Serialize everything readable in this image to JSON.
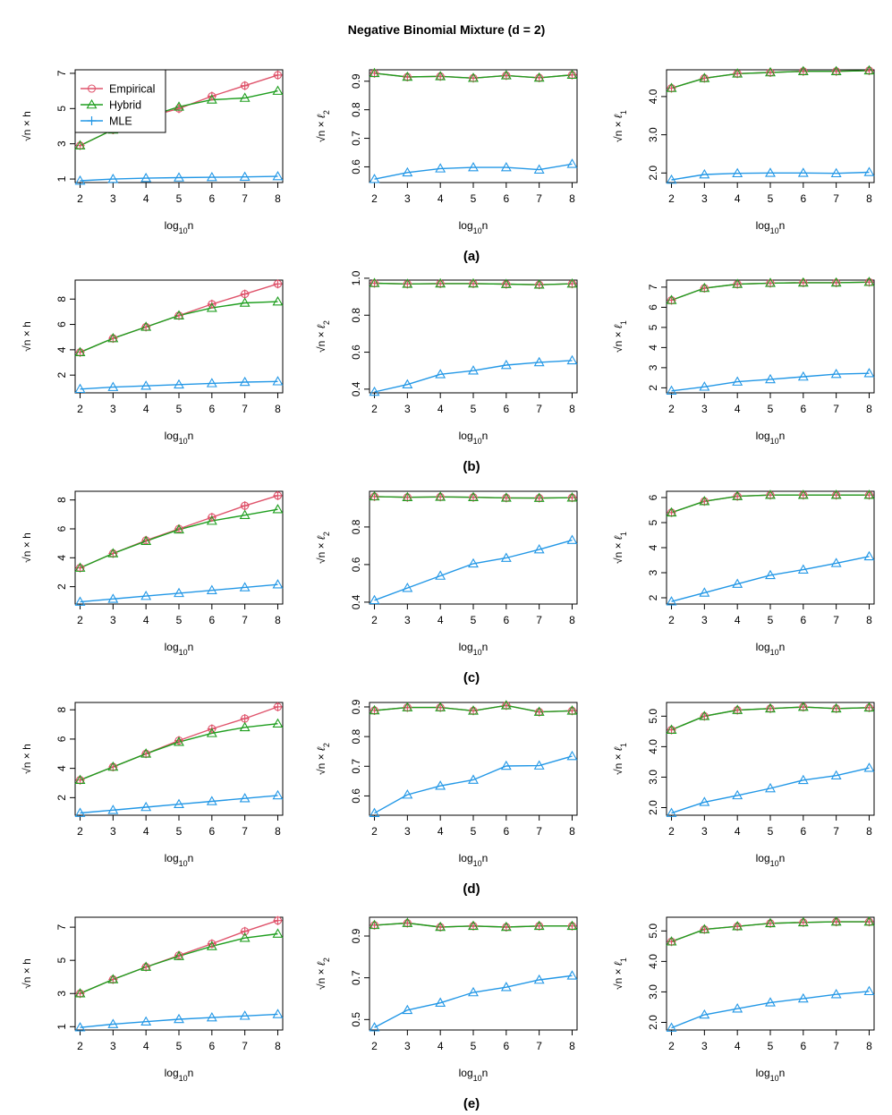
{
  "figure": {
    "title": "Negative Binomial Mixture (d = 2)",
    "colors": {
      "Empirical": "#DF536B",
      "Hybrid": "#1E9E1E",
      "MLE": "#2297E6"
    },
    "legend": {
      "position": "top-left",
      "entries": [
        {
          "name": "Empirical",
          "marker": "circle"
        },
        {
          "name": "Hybrid",
          "marker": "triangle"
        },
        {
          "name": "MLE",
          "marker": "plus"
        }
      ]
    },
    "x_label": {
      "base": "log",
      "sub": "10",
      "tail": "n"
    },
    "y_labels": {
      "h": {
        "root": "√n",
        "times": " × ",
        "sym": "h",
        "sub": ""
      },
      "l2": {
        "root": "√n",
        "times": " × ",
        "sym": "ℓ",
        "sub": "2"
      },
      "l1": {
        "root": "√n",
        "times": " × ",
        "sym": "ℓ",
        "sub": "1"
      }
    }
  },
  "rows": [
    {
      "label": "(a)"
    },
    {
      "label": "(b)"
    },
    {
      "label": "(c)"
    },
    {
      "label": "(d)"
    },
    {
      "label": "(e)"
    }
  ],
  "chart_data": [
    {
      "type": "line",
      "row": "(a)",
      "metric": "h",
      "x": [
        2,
        3,
        4,
        5,
        6,
        7,
        8
      ],
      "xlabel": "log10 n",
      "ylabel": "sqrt(n) x h",
      "ylim": [
        0.8,
        7.2
      ],
      "yticks": [
        1,
        3,
        5,
        7
      ],
      "yticklabels": [
        "1",
        "3",
        "5",
        "7"
      ],
      "series": [
        {
          "name": "Empirical",
          "values": [
            2.9,
            3.8,
            4.5,
            5.0,
            5.7,
            6.3,
            6.9
          ]
        },
        {
          "name": "Hybrid",
          "values": [
            2.9,
            3.8,
            4.5,
            5.1,
            5.5,
            5.6,
            6.0
          ]
        },
        {
          "name": "MLE",
          "values": [
            0.9,
            1.0,
            1.05,
            1.08,
            1.1,
            1.12,
            1.15
          ]
        }
      ]
    },
    {
      "type": "line",
      "row": "(a)",
      "metric": "l2",
      "x": [
        2,
        3,
        4,
        5,
        6,
        7,
        8
      ],
      "xlabel": "log10 n",
      "ylabel": "sqrt(n) x l2",
      "ylim": [
        0.545,
        0.94
      ],
      "yticks": [
        0.6,
        0.7,
        0.8,
        0.9
      ],
      "yticklabels": [
        "0.6",
        "0.7",
        "0.8",
        "0.9"
      ],
      "series": [
        {
          "name": "Empirical",
          "values": [
            0.928,
            0.915,
            0.917,
            0.911,
            0.92,
            0.912,
            0.922
          ]
        },
        {
          "name": "Hybrid",
          "values": [
            0.928,
            0.915,
            0.917,
            0.911,
            0.92,
            0.912,
            0.922
          ]
        },
        {
          "name": "MLE",
          "values": [
            0.557,
            0.58,
            0.594,
            0.598,
            0.598,
            0.59,
            0.61
          ]
        }
      ]
    },
    {
      "type": "line",
      "row": "(a)",
      "metric": "l1",
      "x": [
        2,
        3,
        4,
        5,
        6,
        7,
        8
      ],
      "xlabel": "log10 n",
      "ylabel": "sqrt(n) x l1",
      "ylim": [
        1.75,
        4.7
      ],
      "yticks": [
        2,
        3,
        4
      ],
      "yticklabels": [
        "2.0",
        "3.0",
        "4.0"
      ],
      "series": [
        {
          "name": "Empirical",
          "values": [
            4.22,
            4.48,
            4.6,
            4.63,
            4.66,
            4.66,
            4.68
          ]
        },
        {
          "name": "Hybrid",
          "values": [
            4.22,
            4.48,
            4.6,
            4.63,
            4.66,
            4.66,
            4.68
          ]
        },
        {
          "name": "MLE",
          "values": [
            1.82,
            1.96,
            1.99,
            2.0,
            2.0,
            1.99,
            2.02
          ]
        }
      ]
    },
    {
      "type": "line",
      "row": "(b)",
      "metric": "h",
      "x": [
        2,
        3,
        4,
        5,
        6,
        7,
        8
      ],
      "xlabel": "log10 n",
      "ylabel": "sqrt(n) x h",
      "ylim": [
        0.6,
        9.5
      ],
      "yticks": [
        2,
        4,
        6,
        8
      ],
      "yticklabels": [
        "2",
        "4",
        "6",
        "8"
      ],
      "series": [
        {
          "name": "Empirical",
          "values": [
            3.8,
            4.9,
            5.8,
            6.7,
            7.6,
            8.4,
            9.2
          ]
        },
        {
          "name": "Hybrid",
          "values": [
            3.8,
            4.9,
            5.8,
            6.7,
            7.3,
            7.7,
            7.8
          ]
        },
        {
          "name": "MLE",
          "values": [
            0.9,
            1.05,
            1.15,
            1.25,
            1.35,
            1.45,
            1.5
          ]
        }
      ]
    },
    {
      "type": "line",
      "row": "(b)",
      "metric": "l2",
      "x": [
        2,
        3,
        4,
        5,
        6,
        7,
        8
      ],
      "xlabel": "log10 n",
      "ylabel": "sqrt(n) x l2",
      "ylim": [
        0.38,
        0.99
      ],
      "yticks": [
        0.4,
        0.6,
        0.8,
        1.0
      ],
      "yticklabels": [
        "0.4",
        "0.6",
        "0.8",
        "1.0"
      ],
      "series": [
        {
          "name": "Empirical",
          "values": [
            0.973,
            0.969,
            0.971,
            0.971,
            0.968,
            0.965,
            0.97
          ]
        },
        {
          "name": "Hybrid",
          "values": [
            0.973,
            0.969,
            0.971,
            0.971,
            0.968,
            0.965,
            0.97
          ]
        },
        {
          "name": "MLE",
          "values": [
            0.385,
            0.425,
            0.48,
            0.5,
            0.53,
            0.545,
            0.555
          ]
        }
      ]
    },
    {
      "type": "line",
      "row": "(b)",
      "metric": "l1",
      "x": [
        2,
        3,
        4,
        5,
        6,
        7,
        8
      ],
      "xlabel": "log10 n",
      "ylabel": "sqrt(n) x l1",
      "ylim": [
        1.75,
        7.35
      ],
      "yticks": [
        2,
        3,
        4,
        5,
        6,
        7
      ],
      "yticklabels": [
        "2",
        "3",
        "4",
        "5",
        "6",
        "7"
      ],
      "series": [
        {
          "name": "Empirical",
          "values": [
            6.35,
            6.95,
            7.15,
            7.2,
            7.22,
            7.22,
            7.25
          ]
        },
        {
          "name": "Hybrid",
          "values": [
            6.35,
            6.95,
            7.15,
            7.2,
            7.22,
            7.22,
            7.25
          ]
        },
        {
          "name": "MLE",
          "values": [
            1.85,
            2.05,
            2.3,
            2.42,
            2.55,
            2.68,
            2.72
          ]
        }
      ]
    },
    {
      "type": "line",
      "row": "(c)",
      "metric": "h",
      "x": [
        2,
        3,
        4,
        5,
        6,
        7,
        8
      ],
      "xlabel": "log10 n",
      "ylabel": "sqrt(n) x h",
      "ylim": [
        0.8,
        8.6
      ],
      "yticks": [
        2,
        4,
        6,
        8
      ],
      "yticklabels": [
        "2",
        "4",
        "6",
        "8"
      ],
      "series": [
        {
          "name": "Empirical",
          "values": [
            3.3,
            4.3,
            5.2,
            6.0,
            6.8,
            7.6,
            8.3
          ]
        },
        {
          "name": "Hybrid",
          "values": [
            3.3,
            4.3,
            5.15,
            5.95,
            6.55,
            6.95,
            7.35
          ]
        },
        {
          "name": "MLE",
          "values": [
            0.95,
            1.15,
            1.35,
            1.55,
            1.75,
            1.95,
            2.15
          ]
        }
      ]
    },
    {
      "type": "line",
      "row": "(c)",
      "metric": "l2",
      "x": [
        2,
        3,
        4,
        5,
        6,
        7,
        8
      ],
      "xlabel": "log10 n",
      "ylabel": "sqrt(n) x l2",
      "ylim": [
        0.39,
        0.99
      ],
      "yticks": [
        0.4,
        0.6,
        0.8
      ],
      "yticklabels": [
        "0.4",
        "0.6",
        "0.8"
      ],
      "series": [
        {
          "name": "Empirical",
          "values": [
            0.962,
            0.958,
            0.96,
            0.958,
            0.955,
            0.954,
            0.956
          ]
        },
        {
          "name": "Hybrid",
          "values": [
            0.962,
            0.958,
            0.96,
            0.958,
            0.955,
            0.954,
            0.956
          ]
        },
        {
          "name": "MLE",
          "values": [
            0.41,
            0.475,
            0.54,
            0.605,
            0.635,
            0.68,
            0.73
          ]
        }
      ]
    },
    {
      "type": "line",
      "row": "(c)",
      "metric": "l1",
      "x": [
        2,
        3,
        4,
        5,
        6,
        7,
        8
      ],
      "xlabel": "log10 n",
      "ylabel": "sqrt(n) x l1",
      "ylim": [
        1.75,
        6.25
      ],
      "yticks": [
        2,
        3,
        4,
        5,
        6
      ],
      "yticklabels": [
        "2",
        "3",
        "4",
        "5",
        "6"
      ],
      "series": [
        {
          "name": "Empirical",
          "values": [
            5.4,
            5.85,
            6.05,
            6.1,
            6.1,
            6.1,
            6.1
          ]
        },
        {
          "name": "Hybrid",
          "values": [
            5.4,
            5.85,
            6.05,
            6.1,
            6.1,
            6.1,
            6.1
          ]
        },
        {
          "name": "MLE",
          "values": [
            1.85,
            2.2,
            2.55,
            2.9,
            3.12,
            3.38,
            3.65
          ]
        }
      ]
    },
    {
      "type": "line",
      "row": "(d)",
      "metric": "h",
      "x": [
        2,
        3,
        4,
        5,
        6,
        7,
        8
      ],
      "xlabel": "log10 n",
      "ylabel": "sqrt(n) x h",
      "ylim": [
        0.8,
        8.5
      ],
      "yticks": [
        2,
        4,
        6,
        8
      ],
      "yticklabels": [
        "2",
        "4",
        "6",
        "8"
      ],
      "series": [
        {
          "name": "Empirical",
          "values": [
            3.2,
            4.1,
            5.0,
            5.9,
            6.7,
            7.4,
            8.2
          ]
        },
        {
          "name": "Hybrid",
          "values": [
            3.2,
            4.1,
            5.0,
            5.8,
            6.4,
            6.8,
            7.05
          ]
        },
        {
          "name": "MLE",
          "values": [
            0.95,
            1.15,
            1.35,
            1.55,
            1.75,
            1.95,
            2.15
          ]
        }
      ]
    },
    {
      "type": "line",
      "row": "(d)",
      "metric": "l2",
      "x": [
        2,
        3,
        4,
        5,
        6,
        7,
        8
      ],
      "xlabel": "log10 n",
      "ylabel": "sqrt(n) x l2",
      "ylim": [
        0.535,
        0.915
      ],
      "yticks": [
        0.6,
        0.7,
        0.8,
        0.9
      ],
      "yticklabels": [
        "0.6",
        "0.7",
        "0.8",
        "0.9"
      ],
      "series": [
        {
          "name": "Empirical",
          "values": [
            0.888,
            0.898,
            0.898,
            0.887,
            0.905,
            0.883,
            0.887
          ]
        },
        {
          "name": "Hybrid",
          "values": [
            0.888,
            0.898,
            0.898,
            0.887,
            0.905,
            0.883,
            0.887
          ]
        },
        {
          "name": "MLE",
          "values": [
            0.542,
            0.604,
            0.634,
            0.654,
            0.701,
            0.702,
            0.734
          ]
        }
      ]
    },
    {
      "type": "line",
      "row": "(d)",
      "metric": "l1",
      "x": [
        2,
        3,
        4,
        5,
        6,
        7,
        8
      ],
      "xlabel": "log10 n",
      "ylabel": "sqrt(n) x l1",
      "ylim": [
        1.75,
        5.45
      ],
      "yticks": [
        2,
        3,
        4,
        5
      ],
      "yticklabels": [
        "2.0",
        "3.0",
        "4.0",
        "5.0"
      ],
      "series": [
        {
          "name": "Empirical",
          "values": [
            4.55,
            5.0,
            5.2,
            5.25,
            5.3,
            5.25,
            5.28
          ]
        },
        {
          "name": "Hybrid",
          "values": [
            4.55,
            5.0,
            5.2,
            5.25,
            5.3,
            5.25,
            5.28
          ]
        },
        {
          "name": "MLE",
          "values": [
            1.82,
            2.18,
            2.4,
            2.63,
            2.9,
            3.05,
            3.3
          ]
        }
      ]
    },
    {
      "type": "line",
      "row": "(e)",
      "metric": "h",
      "x": [
        2,
        3,
        4,
        5,
        6,
        7,
        8
      ],
      "xlabel": "log10 n",
      "ylabel": "sqrt(n) x h",
      "ylim": [
        0.8,
        7.6
      ],
      "yticks": [
        1,
        3,
        5,
        7
      ],
      "yticklabels": [
        "1",
        "3",
        "5",
        "7"
      ],
      "series": [
        {
          "name": "Empirical",
          "values": [
            3.0,
            3.85,
            4.6,
            5.3,
            6.0,
            6.75,
            7.4
          ]
        },
        {
          "name": "Hybrid",
          "values": [
            3.0,
            3.85,
            4.6,
            5.25,
            5.85,
            6.35,
            6.6
          ]
        },
        {
          "name": "MLE",
          "values": [
            0.95,
            1.15,
            1.3,
            1.45,
            1.55,
            1.65,
            1.75
          ]
        }
      ]
    },
    {
      "type": "line",
      "row": "(e)",
      "metric": "l2",
      "x": [
        2,
        3,
        4,
        5,
        6,
        7,
        8
      ],
      "xlabel": "log10 n",
      "ylabel": "sqrt(n) x l2",
      "ylim": [
        0.45,
        0.99
      ],
      "yticks": [
        0.5,
        0.7,
        0.9
      ],
      "yticklabels": [
        "0.5",
        "0.7",
        "0.9"
      ],
      "series": [
        {
          "name": "Empirical",
          "values": [
            0.952,
            0.962,
            0.943,
            0.948,
            0.943,
            0.948,
            0.948
          ]
        },
        {
          "name": "Hybrid",
          "values": [
            0.952,
            0.962,
            0.943,
            0.948,
            0.943,
            0.948,
            0.948
          ]
        },
        {
          "name": "MLE",
          "values": [
            0.462,
            0.545,
            0.58,
            0.63,
            0.655,
            0.69,
            0.71
          ]
        }
      ]
    },
    {
      "type": "line",
      "row": "(e)",
      "metric": "l1",
      "x": [
        2,
        3,
        4,
        5,
        6,
        7,
        8
      ],
      "xlabel": "log10 n",
      "ylabel": "sqrt(n) x l1",
      "ylim": [
        1.75,
        5.45
      ],
      "yticks": [
        2,
        3,
        4,
        5
      ],
      "yticklabels": [
        "2.0",
        "3.0",
        "4.0",
        "5.0"
      ],
      "series": [
        {
          "name": "Empirical",
          "values": [
            4.65,
            5.05,
            5.15,
            5.25,
            5.28,
            5.3,
            5.3
          ]
        },
        {
          "name": "Hybrid",
          "values": [
            4.65,
            5.05,
            5.15,
            5.25,
            5.28,
            5.3,
            5.3
          ]
        },
        {
          "name": "MLE",
          "values": [
            1.82,
            2.25,
            2.45,
            2.65,
            2.78,
            2.92,
            3.02
          ]
        }
      ]
    }
  ]
}
